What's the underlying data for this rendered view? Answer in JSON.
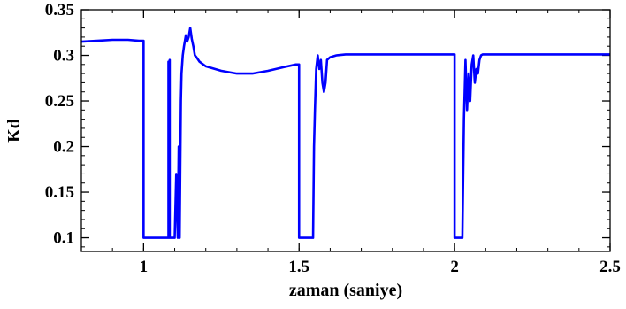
{
  "chart_data": {
    "type": "line",
    "title": "",
    "xlabel": "zaman (saniye)",
    "ylabel": "Kd",
    "xlim": [
      0.8,
      2.5
    ],
    "ylim": [
      0.085,
      0.35
    ],
    "grid": false,
    "x_ticks": [
      1,
      1.5,
      2,
      2.5
    ],
    "x_tick_labels": [
      "1",
      "1.5",
      "2",
      "2.5"
    ],
    "y_ticks": [
      0.1,
      0.15,
      0.2,
      0.25,
      0.3,
      0.35
    ],
    "y_tick_labels": [
      "0.1",
      "0.15",
      "0.2",
      "0.25",
      "0.3",
      "0.35"
    ],
    "line_color": "#0000ff",
    "series": [
      {
        "x": [
          0.8,
          0.85,
          0.9,
          0.95,
          0.985,
          1.0,
          1.0,
          1.08,
          1.08,
          1.082,
          1.084,
          1.084,
          1.1,
          1.105,
          1.11,
          1.113,
          1.116,
          1.12,
          1.122,
          1.126,
          1.13,
          1.136,
          1.14,
          1.145,
          1.15,
          1.155,
          1.16,
          1.165,
          1.17,
          1.18,
          1.2,
          1.25,
          1.3,
          1.35,
          1.4,
          1.45,
          1.49,
          1.5,
          1.5,
          1.545,
          1.548,
          1.551,
          1.555,
          1.56,
          1.565,
          1.57,
          1.575,
          1.58,
          1.585,
          1.59,
          1.6,
          1.62,
          1.65,
          1.7,
          1.8,
          1.9,
          1.998,
          2.0,
          2.0,
          2.025,
          2.03,
          2.035,
          2.04,
          2.045,
          2.05,
          2.055,
          2.06,
          2.065,
          2.07,
          2.075,
          2.08,
          2.085,
          2.09,
          2.1,
          2.2,
          2.3,
          2.4,
          2.5
        ],
        "y": [
          0.315,
          0.316,
          0.317,
          0.317,
          0.316,
          0.316,
          0.1,
          0.1,
          0.293,
          0.1,
          0.295,
          0.1,
          0.1,
          0.17,
          0.1,
          0.2,
          0.1,
          0.25,
          0.28,
          0.3,
          0.31,
          0.322,
          0.315,
          0.32,
          0.33,
          0.318,
          0.31,
          0.3,
          0.298,
          0.293,
          0.288,
          0.283,
          0.28,
          0.28,
          0.283,
          0.287,
          0.29,
          0.29,
          0.1,
          0.1,
          0.2,
          0.24,
          0.285,
          0.3,
          0.285,
          0.295,
          0.27,
          0.26,
          0.27,
          0.295,
          0.298,
          0.3,
          0.301,
          0.301,
          0.301,
          0.301,
          0.301,
          0.301,
          0.1,
          0.1,
          0.23,
          0.295,
          0.24,
          0.28,
          0.25,
          0.29,
          0.3,
          0.27,
          0.285,
          0.28,
          0.295,
          0.3,
          0.301,
          0.301,
          0.301,
          0.301,
          0.301,
          0.301
        ]
      }
    ]
  }
}
